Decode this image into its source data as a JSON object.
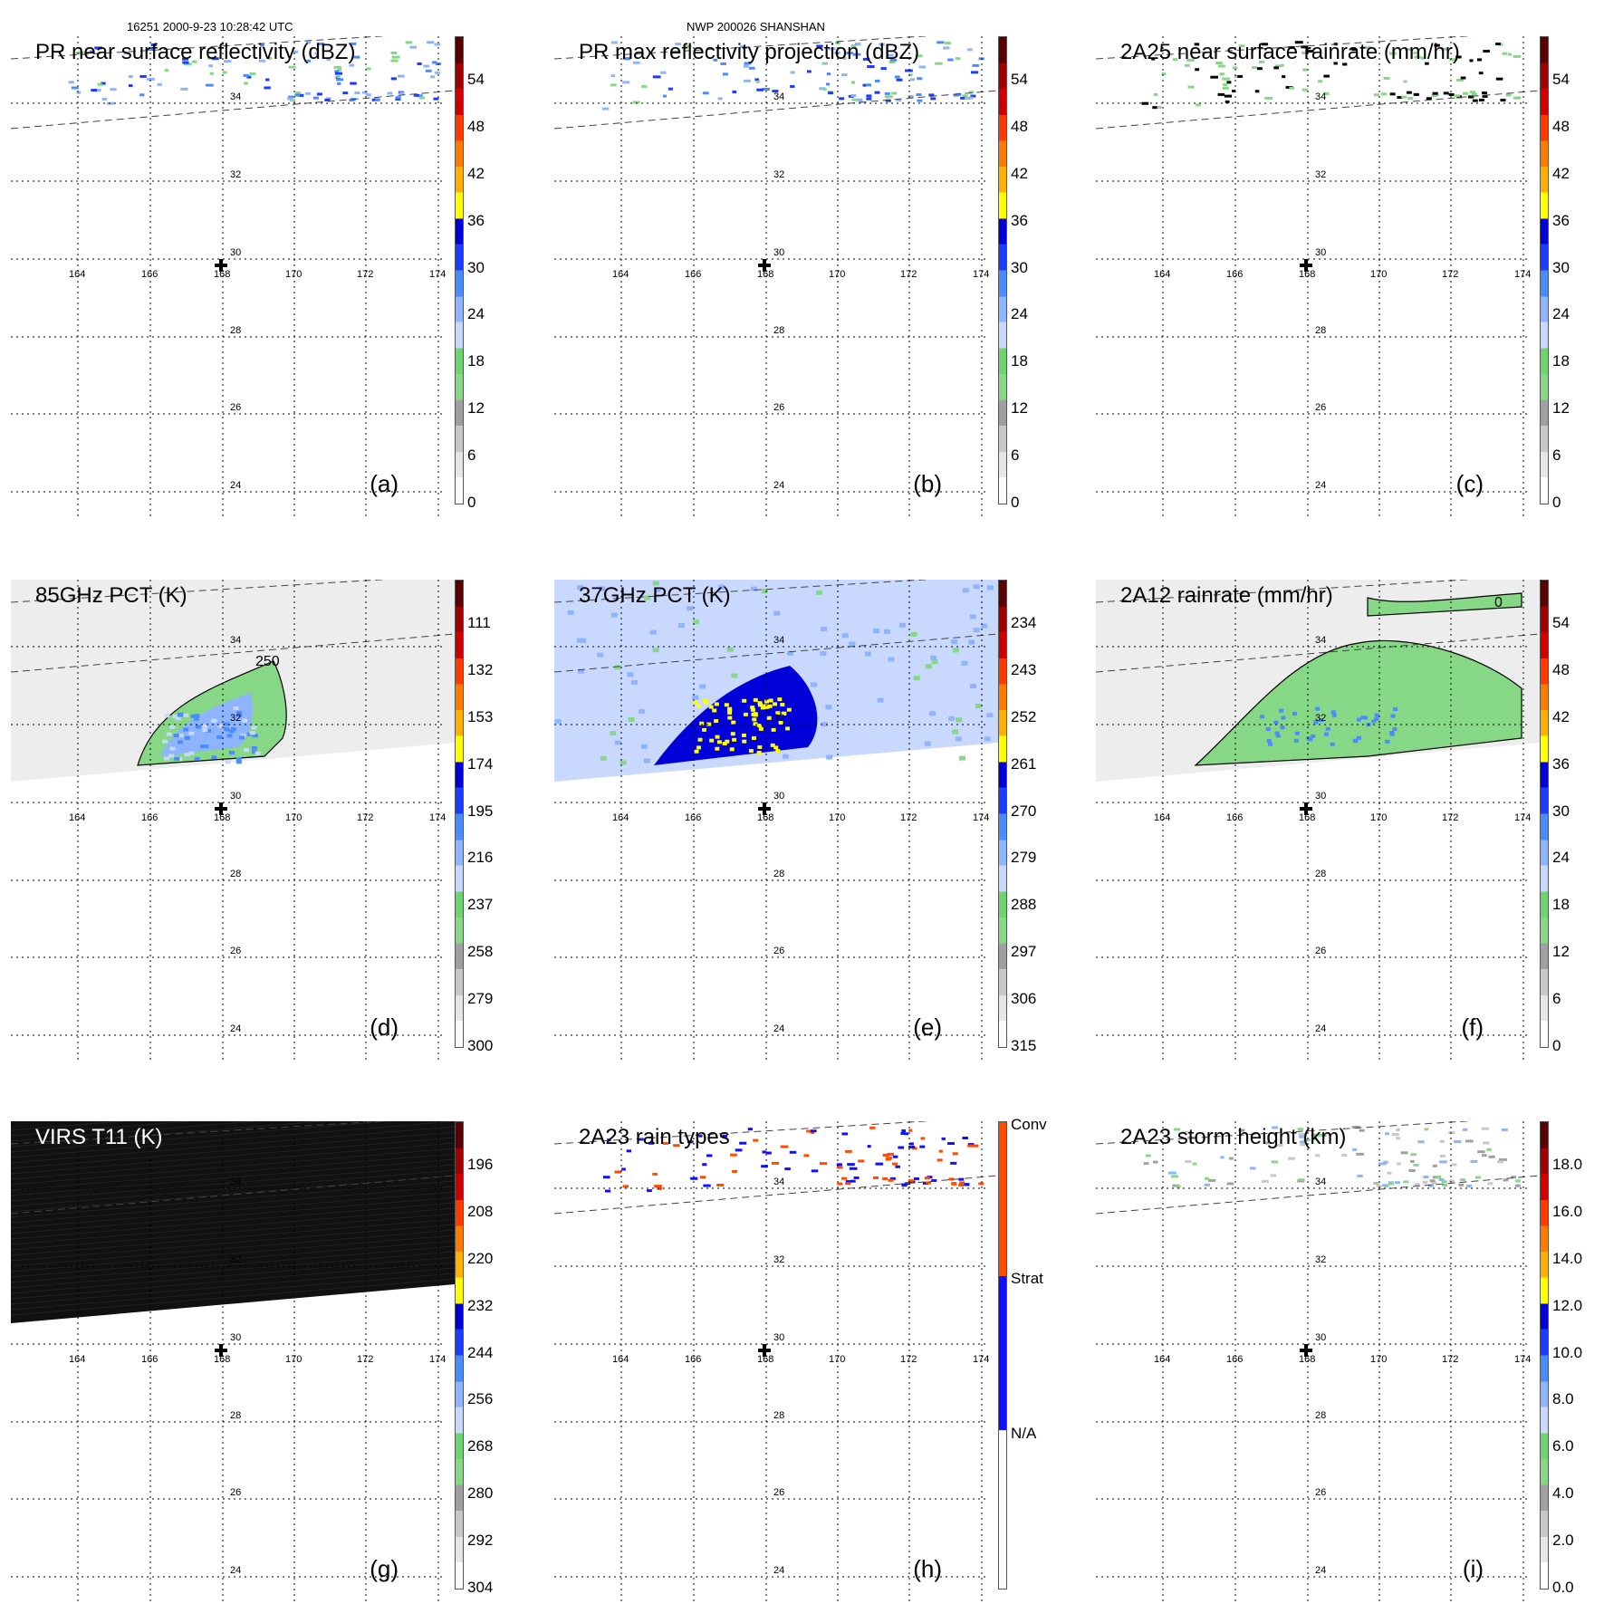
{
  "header": {
    "orbit_time": "16251 2000-9-23 10:28:42 UTC",
    "storm": "NWP 200026 SHANSHAN"
  },
  "axes": {
    "lat_labels": [
      "34",
      "32",
      "30",
      "28",
      "26",
      "24"
    ],
    "lon_labels": [
      "164",
      "166",
      "168",
      "170",
      "172",
      "174"
    ]
  },
  "colors": {
    "scale": [
      "#ffffff",
      "#e6e6e6",
      "#c8c8c8",
      "#a0a0a0",
      "#86d886",
      "#6ed46e",
      "#c8d8ff",
      "#8fb4ff",
      "#4a8cff",
      "#1b3cff",
      "#0000d8",
      "#ffff00",
      "#ffb000",
      "#ff7a00",
      "#ff3a00",
      "#d00000",
      "#a00000",
      "#5a0000"
    ],
    "raintype": [
      "#ff4a00",
      "#1010ff",
      "#ffffff"
    ]
  },
  "panels": [
    {
      "id": "a",
      "label": "(a)",
      "title": "PR near surface reflectivity (dBZ)",
      "ticks": [
        "54",
        "48",
        "42",
        "36",
        "30",
        "24",
        "18",
        "12",
        "6",
        "0"
      ]
    },
    {
      "id": "b",
      "label": "(b)",
      "title": "PR max reflectivity projection (dBZ)",
      "ticks": [
        "54",
        "48",
        "42",
        "36",
        "30",
        "24",
        "18",
        "12",
        "6",
        "0"
      ]
    },
    {
      "id": "c",
      "label": "(c)",
      "title": "2A25 near surface rainrate (mm/hr)",
      "ticks": [
        "54",
        "48",
        "42",
        "36",
        "30",
        "24",
        "18",
        "12",
        "6",
        "0"
      ]
    },
    {
      "id": "d",
      "label": "(d)",
      "title": "85GHz PCT (K)",
      "ticks": [
        "111",
        "132",
        "153",
        "174",
        "195",
        "216",
        "237",
        "258",
        "279",
        "300"
      ],
      "contour": "250"
    },
    {
      "id": "e",
      "label": "(e)",
      "title": "37GHz PCT (K)",
      "ticks": [
        "234",
        "243",
        "252",
        "261",
        "270",
        "279",
        "288",
        "297",
        "306",
        "315"
      ]
    },
    {
      "id": "f",
      "label": "(f)",
      "title": "2A12 rainrate (mm/hr)",
      "ticks": [
        "54",
        "48",
        "42",
        "36",
        "30",
        "24",
        "18",
        "12",
        "6",
        "0"
      ],
      "contour": "0"
    },
    {
      "id": "g",
      "label": "(g)",
      "title": "VIRS T11 (K)",
      "ticks": [
        "196",
        "208",
        "220",
        "232",
        "244",
        "256",
        "268",
        "280",
        "292",
        "304"
      ]
    },
    {
      "id": "h",
      "label": "(h)",
      "title": "2A23 rain types",
      "ticks": [
        "Conv",
        "Strat",
        "N/A"
      ]
    },
    {
      "id": "i",
      "label": "(i)",
      "title": "2A23 storm height (km)",
      "ticks": [
        "18.0",
        "16.0",
        "14.0",
        "12.0",
        "10.0",
        "8.0",
        "6.0",
        "4.0",
        "2.0",
        "0.0"
      ]
    }
  ]
}
